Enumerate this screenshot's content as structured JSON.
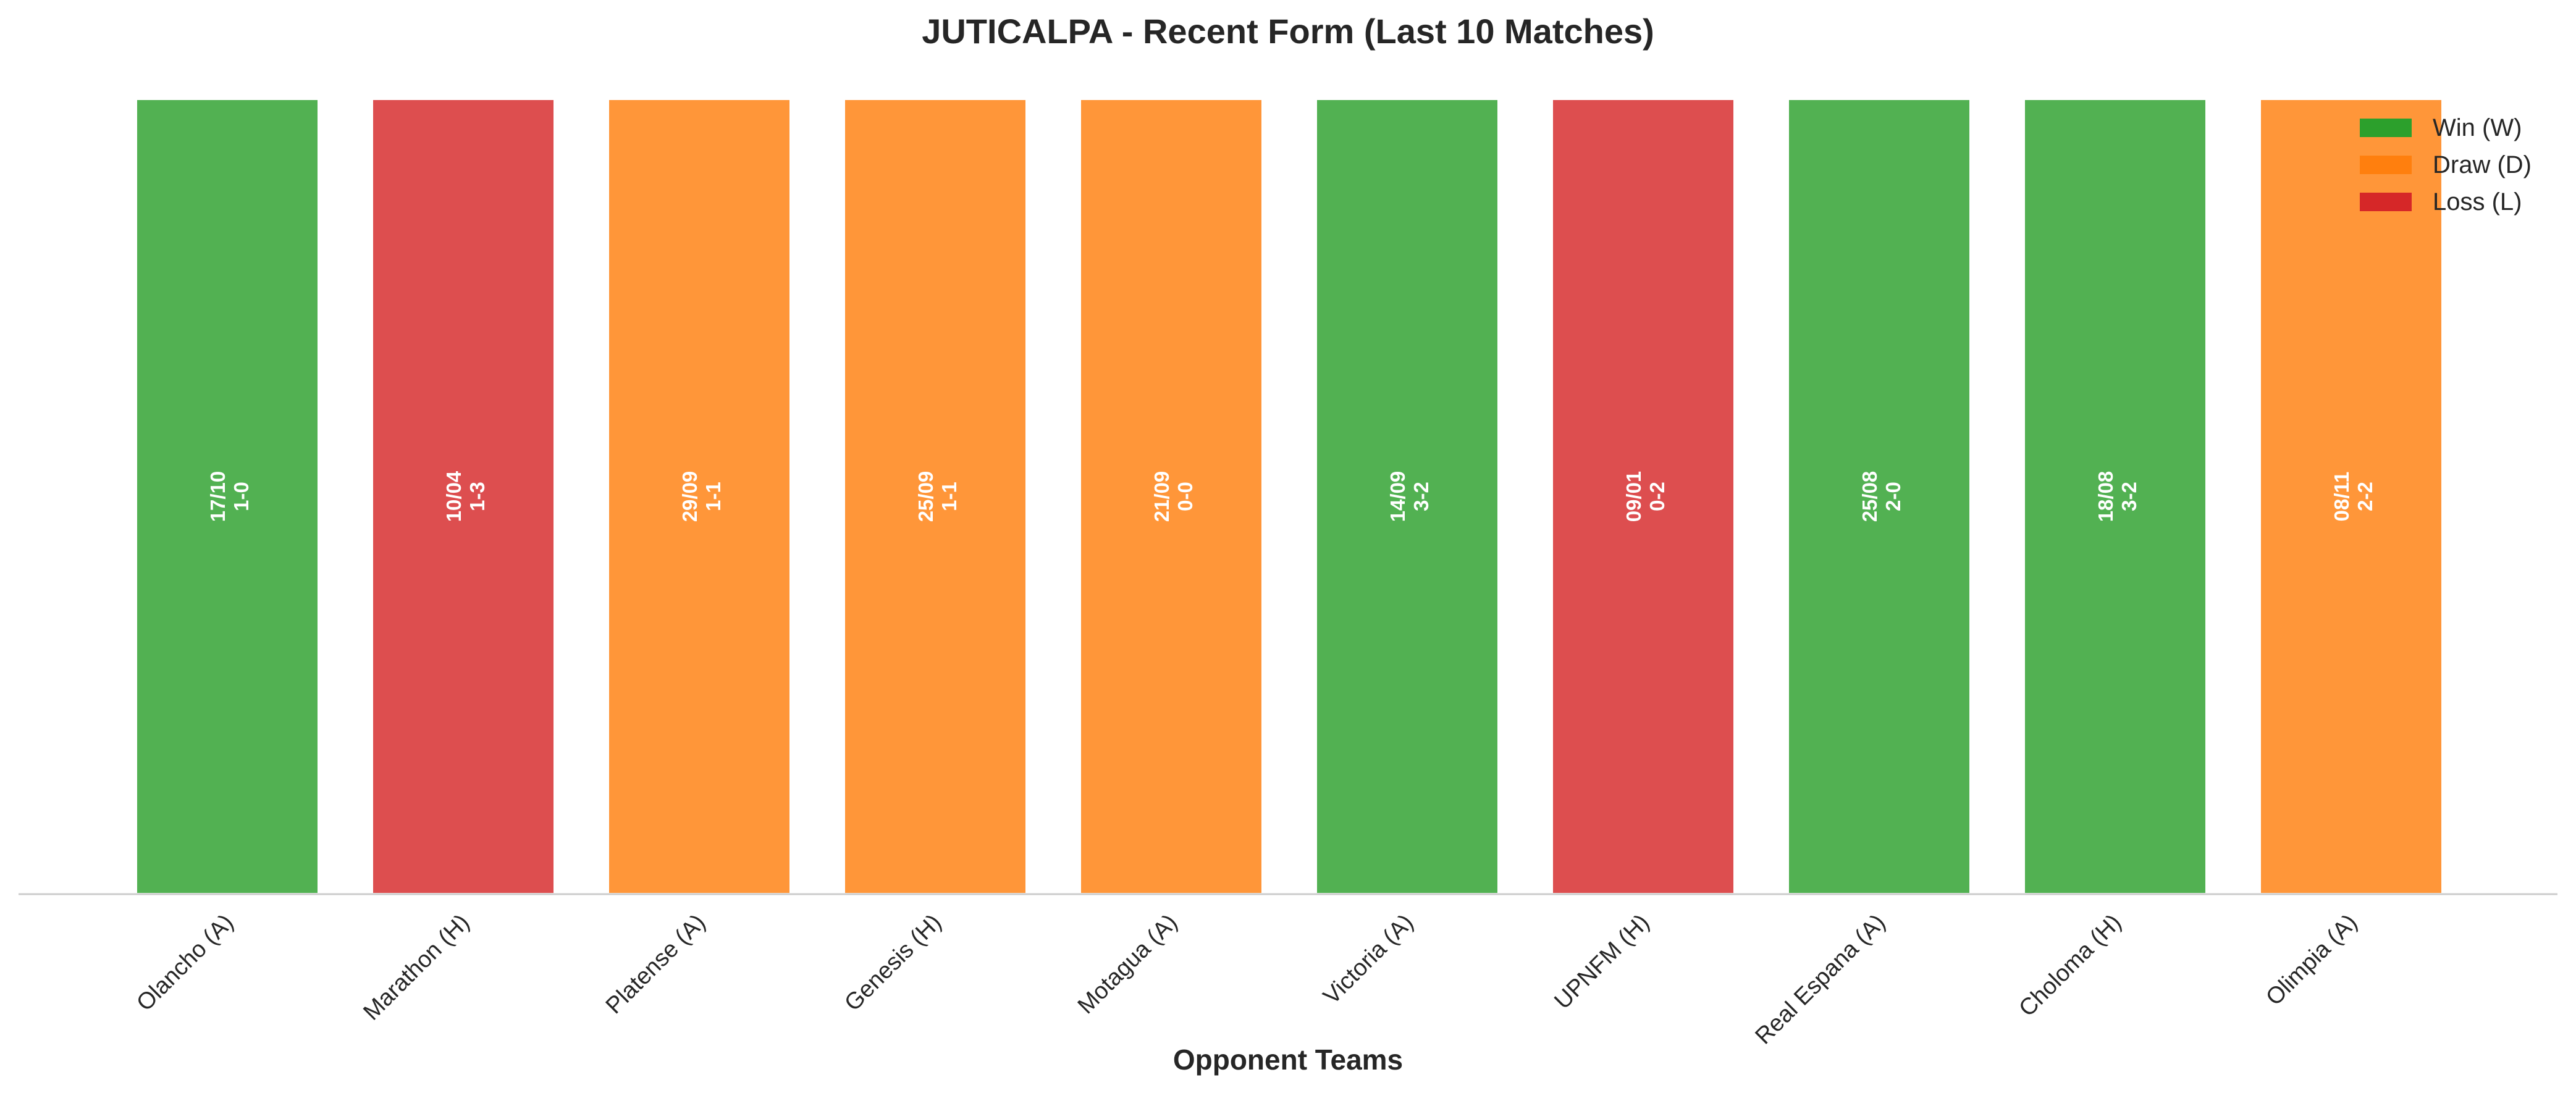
{
  "chart_data": {
    "type": "bar",
    "title": "JUTICALPA - Recent Form (Last 10 Matches)",
    "xlabel": "Opponent Teams",
    "ylabel": "",
    "categories": [
      "Olancho (A)",
      "Marathon (H)",
      "Platense (A)",
      "Genesis (H)",
      "Motagua (A)",
      "Victoria (A)",
      "UPNFM (H)",
      "Real Espana (A)",
      "Choloma (H)",
      "Olimpia (A)"
    ],
    "values": [
      1,
      1,
      1,
      1,
      1,
      1,
      1,
      1,
      1,
      1
    ],
    "results": [
      "W",
      "L",
      "D",
      "D",
      "D",
      "W",
      "L",
      "W",
      "W",
      "D"
    ],
    "dates": [
      "17/10",
      "10/04",
      "29/09",
      "25/09",
      "21/09",
      "14/09",
      "09/01",
      "25/08",
      "18/08",
      "08/11"
    ],
    "scores": [
      "1-0",
      "1-3",
      "1-1",
      "1-1",
      "0-0",
      "3-2",
      "0-2",
      "2-0",
      "3-2",
      "2-2"
    ],
    "ylim": [
      0,
      1
    ],
    "grid": false,
    "legend": {
      "placement": "top-right",
      "entries": [
        {
          "key": "W",
          "label": "Win (W)",
          "color": "#2ca02c"
        },
        {
          "key": "D",
          "label": "Draw (D)",
          "color": "#ff7f0e"
        },
        {
          "key": "L",
          "label": "Loss (L)",
          "color": "#d62728"
        }
      ]
    }
  }
}
